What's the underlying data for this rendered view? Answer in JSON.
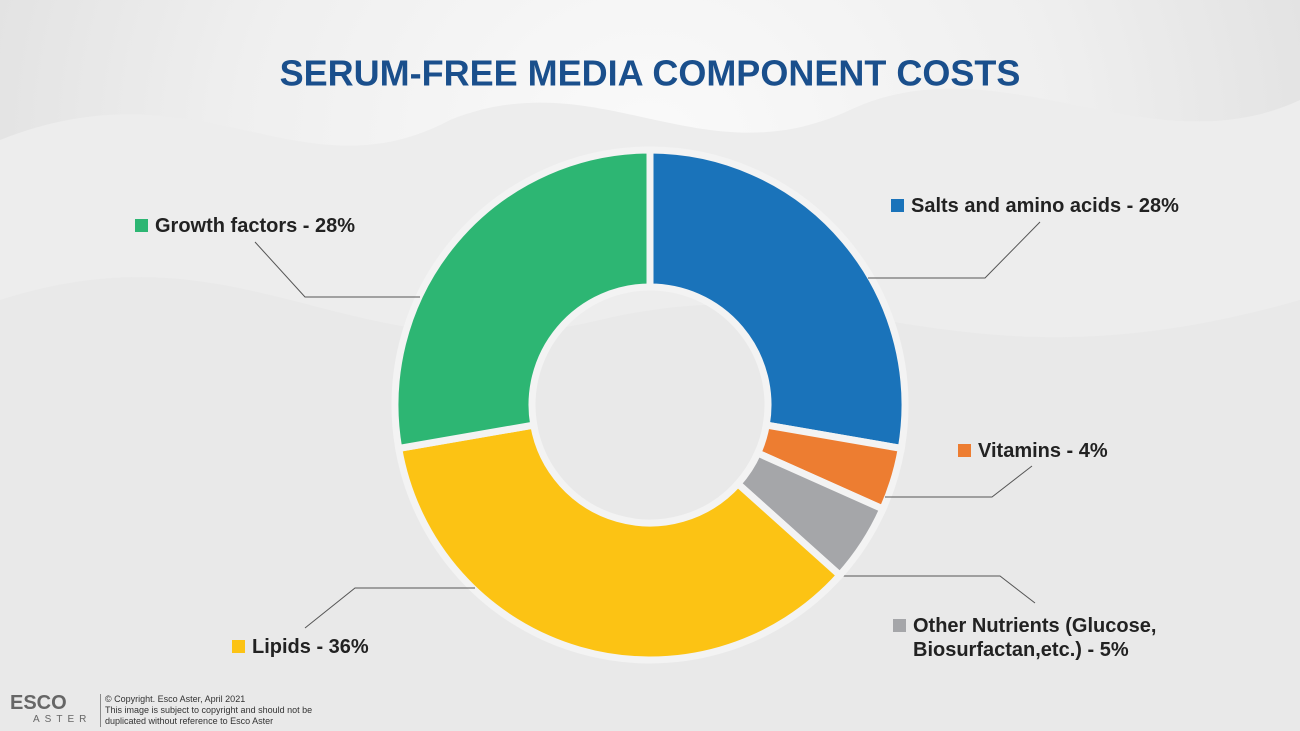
{
  "chart_data": {
    "type": "donut",
    "title": "SERUM-FREE MEDIA COMPONENT COSTS",
    "categories": [
      "Salts and amino acids - 28%",
      "Vitamins - 4%",
      "Other Nutrients (Glucose, Biosurfactan,etc.) - 5%",
      "Lipids - 36%",
      "Growth factors - 28%"
    ],
    "values": [
      28,
      4,
      5,
      36,
      28
    ],
    "colors": [
      "#1a73ba",
      "#ed7d31",
      "#a5a6a9",
      "#fcc314",
      "#2db673"
    ]
  },
  "footer": {
    "logo": "ESCO",
    "logo_sub": "ASTER",
    "lines": [
      "© Copyright. Esco Aster, April 2021",
      "This image is subject to copyright and should not be",
      "duplicated without reference to Esco Aster"
    ]
  }
}
